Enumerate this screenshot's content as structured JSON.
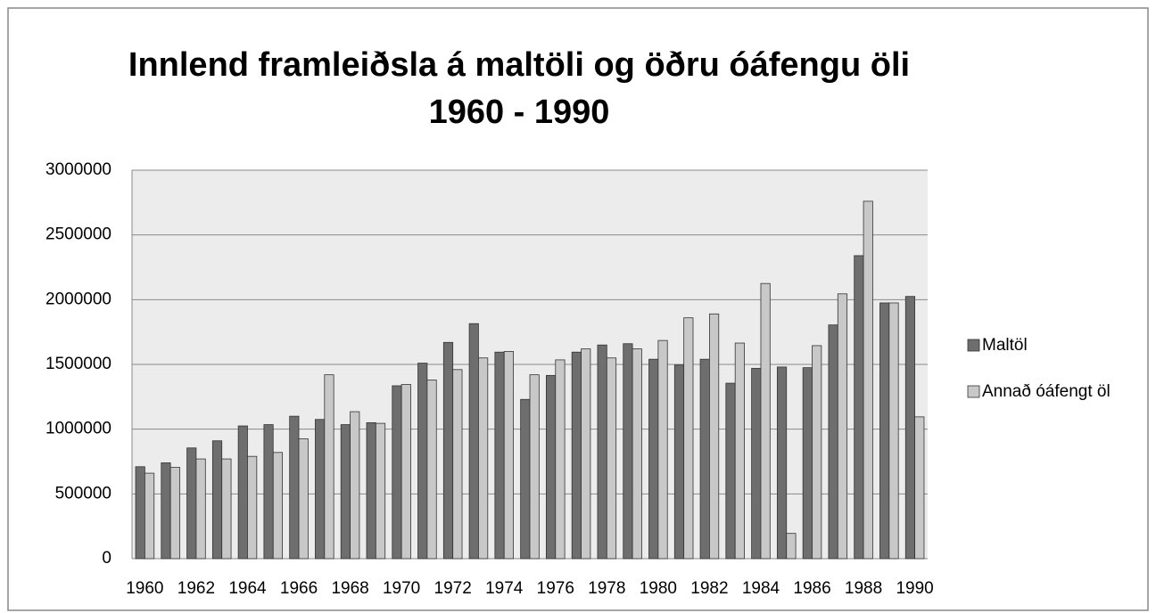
{
  "chart_data": {
    "type": "bar",
    "title": "Innlend framleiðsla á maltöli og öðru óáfengu öli",
    "subtitle": "1960 - 1990",
    "categories": [
      "1960",
      null,
      "1962",
      null,
      "1964",
      null,
      "1966",
      null,
      "1968",
      null,
      "1970",
      null,
      "1972",
      null,
      "1974",
      null,
      "1976",
      null,
      "1978",
      null,
      "1980",
      null,
      "1982",
      null,
      "1984",
      null,
      "1986",
      null,
      "1988",
      null,
      "1990"
    ],
    "series": [
      {
        "name": "Maltöl",
        "color": "#6e6e6e",
        "values": [
          710000,
          740000,
          855000,
          910000,
          1025000,
          1035000,
          1100000,
          1075000,
          1035000,
          1050000,
          1335000,
          1510000,
          1670000,
          1815000,
          1595000,
          1230000,
          1415000,
          1595000,
          1650000,
          1660000,
          1540000,
          1495000,
          1540000,
          1355000,
          1470000,
          1480000,
          1475000,
          1805000,
          2340000,
          1975000,
          2025000
        ]
      },
      {
        "name": "Annað óáfengt öl",
        "color": "#c8c8c8",
        "values": [
          660000,
          705000,
          770000,
          770000,
          790000,
          820000,
          925000,
          1420000,
          1135000,
          1045000,
          1345000,
          1380000,
          1460000,
          1550000,
          1600000,
          1420000,
          1535000,
          1620000,
          1550000,
          1620000,
          1685000,
          1860000,
          1890000,
          1665000,
          2125000,
          195000,
          1645000,
          2045000,
          2760000,
          1975000,
          1095000
        ]
      }
    ],
    "ylim": [
      0,
      3000000
    ],
    "yticks": [
      0,
      500000,
      1000000,
      1500000,
      2000000,
      2500000,
      3000000
    ],
    "grid": true,
    "legend": "right"
  }
}
